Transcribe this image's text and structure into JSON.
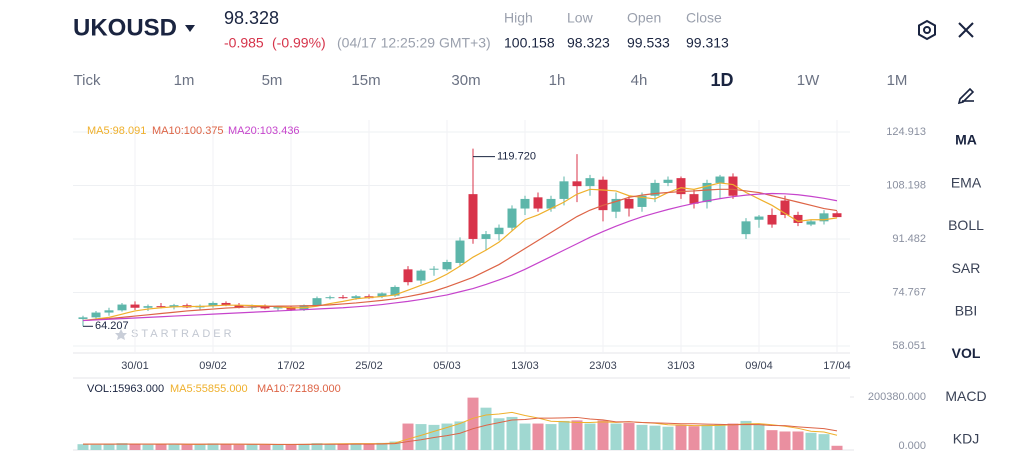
{
  "header": {
    "symbol": "UKOUSD",
    "price": "98.328",
    "change": "-0.985",
    "change_pct": "(-0.99%)",
    "timestamp": "(04/17 12:25:29 GMT+3)",
    "stats": [
      {
        "label": "High",
        "value": "100.158"
      },
      {
        "label": "Low",
        "value": "98.323"
      },
      {
        "label": "Open",
        "value": "99.533"
      },
      {
        "label": "Close",
        "value": "99.313"
      }
    ]
  },
  "timeframes": [
    {
      "label": "Tick"
    },
    {
      "label": "1m"
    },
    {
      "label": "5m"
    },
    {
      "label": "15m"
    },
    {
      "label": "30m"
    },
    {
      "label": "1h"
    },
    {
      "label": "4h"
    },
    {
      "label": "1D",
      "selected": true
    },
    {
      "label": "1W"
    },
    {
      "label": "1M"
    }
  ],
  "indicators": [
    {
      "label": "MA",
      "selected": true
    },
    {
      "label": "EMA"
    },
    {
      "label": "BOLL"
    },
    {
      "label": "SAR"
    },
    {
      "label": "BBI"
    },
    {
      "label": "VOL",
      "selected": true
    },
    {
      "label": "MACD"
    },
    {
      "label": "KDJ"
    }
  ],
  "chart_data": [
    {
      "type": "candlestick",
      "watermark": "STARTRADER",
      "max_label": "119.720",
      "min_label": "64.207",
      "up_color": "#5db6aa",
      "down_color": "#d8334a",
      "grid": true,
      "categories": [
        null,
        null,
        null,
        null,
        "30/01",
        null,
        null,
        null,
        null,
        null,
        "09/02",
        null,
        null,
        null,
        null,
        null,
        "17/02",
        null,
        null,
        null,
        null,
        null,
        "25/02",
        null,
        null,
        null,
        null,
        null,
        "05/03",
        null,
        null,
        null,
        null,
        null,
        "13/03",
        null,
        null,
        null,
        null,
        null,
        "23/03",
        null,
        null,
        null,
        null,
        null,
        "31/03",
        null,
        null,
        null,
        null,
        null,
        "09/04",
        null,
        null,
        null,
        null,
        null,
        "17/04"
      ],
      "open": [
        66.5,
        67.0,
        68.5,
        69.2,
        71.0,
        70.0,
        70.5,
        70.2,
        70.8,
        70.1,
        70.6,
        71.5,
        70.8,
        70.0,
        70.4,
        69.8,
        70.2,
        69.4,
        70.8,
        73.0,
        73.3,
        73.0,
        73.6,
        73.5,
        73.8,
        82.0,
        78.5,
        82.0,
        82.0,
        84.0,
        105.5,
        91.5,
        93.0,
        95.0,
        101.0,
        104.5,
        101.0,
        104.0,
        109.5,
        108.0,
        110.0,
        100.0,
        104.0,
        101.5,
        105.0,
        109.0,
        110.5,
        105.5,
        103.0,
        109.0,
        111.0,
        93.0,
        97.5,
        99.0,
        103.5,
        99.0,
        96.0,
        97.0,
        99.533
      ],
      "high": [
        67.5,
        69.0,
        70.0,
        71.5,
        72.0,
        71.0,
        71.5,
        71.2,
        71.3,
        71.0,
        72.0,
        72.0,
        71.5,
        71.0,
        71.0,
        70.5,
        70.5,
        71.0,
        73.5,
        73.8,
        74.0,
        74.0,
        74.2,
        74.8,
        77.0,
        83.0,
        82.0,
        83.0,
        85.0,
        92.0,
        119.72,
        94.0,
        96.0,
        102.0,
        105.0,
        106.0,
        105.0,
        111.0,
        118.0,
        111.5,
        111.0,
        106.0,
        105.0,
        106.0,
        110.0,
        111.0,
        111.0,
        107.0,
        110.0,
        111.5,
        112.0,
        98.0,
        99.0,
        101.0,
        105.0,
        100.0,
        97.5,
        100.5,
        100.158
      ],
      "low": [
        64.207,
        66.3,
        67.5,
        68.8,
        69.3,
        69.0,
        69.8,
        69.5,
        69.9,
        69.4,
        70.0,
        70.5,
        69.8,
        69.5,
        69.5,
        69.0,
        69.0,
        69.0,
        70.5,
        72.6,
        72.8,
        72.5,
        72.8,
        73.0,
        73.4,
        77.0,
        77.5,
        80.0,
        81.5,
        83.0,
        90.0,
        88.0,
        91.0,
        94.0,
        99.0,
        100.0,
        100.0,
        102.0,
        103.0,
        105.0,
        97.0,
        98.0,
        98.5,
        100.0,
        103.0,
        108.0,
        104.0,
        101.0,
        101.0,
        104.0,
        104.0,
        91.5,
        95.0,
        95.0,
        98.0,
        95.5,
        95.5,
        96.0,
        98.323
      ],
      "close": [
        67.0,
        68.5,
        69.2,
        71.0,
        70.0,
        70.5,
        70.2,
        70.8,
        70.1,
        70.6,
        71.5,
        70.8,
        70.0,
        70.4,
        69.8,
        70.2,
        69.4,
        70.8,
        73.0,
        73.3,
        73.0,
        73.6,
        73.0,
        74.5,
        76.5,
        78.0,
        81.6,
        82.2,
        84.3,
        91.0,
        91.5,
        93.0,
        95.0,
        101.0,
        104.0,
        101.0,
        104.0,
        109.5,
        108.0,
        110.5,
        100.5,
        104.0,
        101.0,
        105.0,
        109.0,
        110.0,
        105.5,
        102.5,
        109.0,
        111.0,
        105.0,
        97.0,
        98.5,
        96.0,
        99.0,
        96.5,
        97.0,
        99.5,
        98.328
      ],
      "ylim": [
        58.051,
        124.913
      ],
      "yticks": [
        58.051,
        74.767,
        91.482,
        108.198,
        124.913
      ],
      "series": [
        {
          "name": "MA5:98.091",
          "color": "#efb02c",
          "values": [
            66,
            66.5,
            67,
            68,
            69,
            69.6,
            70,
            70.3,
            70.4,
            70.4,
            70.6,
            70.8,
            70.8,
            70.7,
            70.6,
            70.3,
            70,
            70,
            70.5,
            71.3,
            72,
            72.8,
            73.2,
            73.5,
            74,
            75.5,
            77,
            78.5,
            80.5,
            83,
            85.8,
            88,
            90.5,
            94,
            97.5,
            99,
            101,
            103,
            105.5,
            107,
            106.8,
            106.5,
            105,
            104.5,
            104,
            106,
            107.5,
            107,
            108,
            109,
            108.5,
            106,
            104,
            102,
            99.5,
            97,
            97.5,
            97.5,
            98.091
          ]
        },
        {
          "name": "MA10:100.375",
          "color": "#dd6446",
          "values": [
            66,
            66.3,
            66.6,
            67,
            67.4,
            67.8,
            68.2,
            68.6,
            69,
            69.3,
            69.6,
            69.9,
            70.1,
            70.3,
            70.4,
            70.5,
            70.5,
            70.6,
            70.7,
            70.9,
            71.2,
            71.5,
            71.9,
            72.3,
            72.8,
            73.5,
            74.3,
            75.2,
            76.5,
            78,
            79.5,
            81.5,
            83.5,
            86,
            88.5,
            91,
            93.5,
            96,
            98.5,
            100.5,
            102,
            103.2,
            104.5,
            105.2,
            105.7,
            106,
            106.3,
            106.5,
            106.8,
            107,
            107,
            106.5,
            106,
            105,
            104,
            103,
            102,
            101,
            100.375
          ]
        },
        {
          "name": "MA20:103.436",
          "color": "#c644cc",
          "values": [
            66,
            66.2,
            66.4,
            66.6,
            66.8,
            67,
            67.2,
            67.4,
            67.6,
            67.8,
            68,
            68.2,
            68.4,
            68.6,
            68.8,
            69,
            69.2,
            69.4,
            69.6,
            69.8,
            70,
            70.3,
            70.6,
            71,
            71.5,
            72,
            72.6,
            73.3,
            74,
            75,
            76,
            77.3,
            78.7,
            80.2,
            82,
            84,
            86,
            88,
            90,
            92,
            93.8,
            95.5,
            97,
            98.4,
            99.6,
            100.7,
            101.7,
            102.6,
            103.4,
            104.1,
            104.7,
            105.2,
            105.5,
            105.7,
            105.6,
            105.3,
            104.8,
            104.2,
            103.436
          ]
        }
      ]
    },
    {
      "type": "bar",
      "name": "VOL:15963.000",
      "up_color": "#a0d8d1",
      "down_color": "#ea8fa0",
      "values": [
        22000,
        20000,
        24000,
        26000,
        21000,
        20000,
        23000,
        22000,
        20000,
        21000,
        25000,
        22000,
        20000,
        21000,
        19000,
        22000,
        21000,
        23000,
        26000,
        24000,
        22000,
        25000,
        23000,
        27000,
        32000,
        100000,
        98000,
        95000,
        100000,
        108000,
        198000,
        160000,
        120000,
        125000,
        100000,
        100000,
        98000,
        110000,
        112000,
        100000,
        112000,
        100000,
        102000,
        95000,
        92000,
        88000,
        95000,
        90000,
        95000,
        98000,
        100000,
        110000,
        95000,
        75000,
        70000,
        70000,
        65000,
        60000,
        15963
      ],
      "ylim": [
        0,
        200380
      ],
      "yticks": [
        {
          "value": 0,
          "label": "0.000"
        },
        {
          "value": 200380,
          "label": "200380.000"
        }
      ],
      "series": [
        {
          "name": "MA5:55855.000",
          "color": "#efb02c",
          "values": [
            22000,
            22000,
            22000,
            22500,
            22600,
            22200,
            22800,
            22000,
            21200,
            21200,
            22200,
            22000,
            21600,
            21800,
            21400,
            20800,
            20600,
            21200,
            22200,
            23200,
            23400,
            24000,
            24000,
            24200,
            26400,
            41400,
            55200,
            70400,
            85000,
            100200,
            119800,
            132200,
            136200,
            142200,
            130600,
            121000,
            108600,
            106600,
            104000,
            104000,
            106400,
            104400,
            106800,
            103800,
            101000,
            95400,
            94000,
            92000,
            92000,
            93200,
            95600,
            98600,
            99600,
            95600,
            90000,
            82000,
            71000,
            68000,
            55855
          ]
        },
        {
          "name": "MA10:72189.000",
          "color": "#dd6446",
          "values": [
            22000,
            22000,
            22000,
            22000,
            22300,
            22400,
            22300,
            22500,
            22300,
            22000,
            22000,
            22200,
            22000,
            21700,
            21700,
            21500,
            21400,
            21300,
            21600,
            21700,
            21700,
            22100,
            22400,
            22900,
            24300,
            31900,
            38700,
            47200,
            54400,
            63300,
            80600,
            93700,
            103300,
            113600,
            115400,
            120400,
            120400,
            121400,
            123100,
            117300,
            113700,
            106500,
            106700,
            103900,
            102500,
            100900,
            99200,
            99400,
            97900,
            97100,
            95500,
            96300,
            95800,
            92800,
            92000,
            87500,
            84000,
            81000,
            72189
          ]
        }
      ]
    }
  ]
}
